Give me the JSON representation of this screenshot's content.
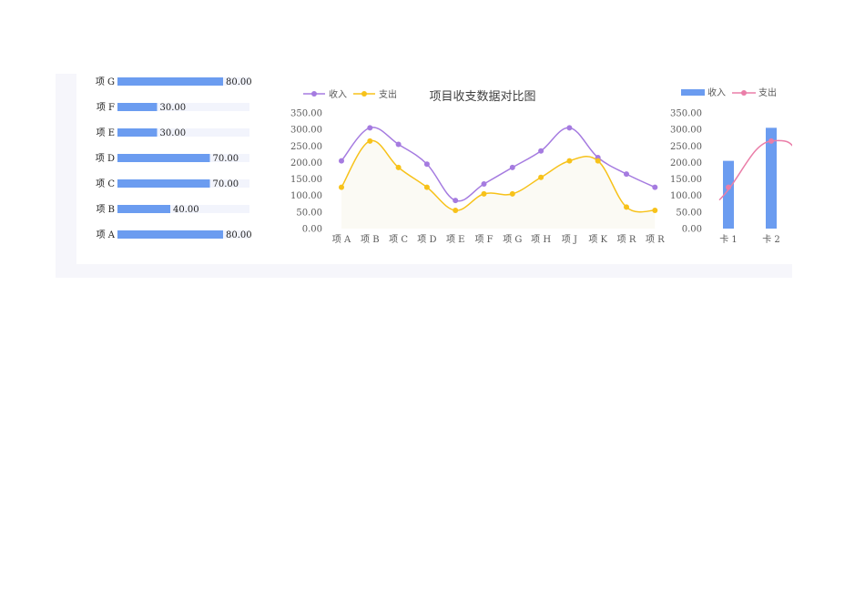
{
  "colors": {
    "bar": "#6b9cf0",
    "bar_track": "#f2f4fc",
    "income": "#a57be0",
    "expense": "#f7c21a",
    "expense_fill": "#fbfaf4",
    "income_right": "#ea7ea8",
    "panel_bg": "#f6f6fb"
  },
  "chart_data": [
    {
      "type": "bar",
      "orientation": "horizontal",
      "categories": [
        "项 G",
        "项 F",
        "项 E",
        "项 D",
        "项 C",
        "项 B",
        "项 A"
      ],
      "values": [
        80,
        30,
        30,
        70,
        70,
        40,
        80
      ],
      "value_labels": [
        "80.00",
        "30.00",
        "30.00",
        "70.00",
        "70.00",
        "40.00",
        "80.00"
      ],
      "xlim": [
        0,
        100
      ]
    },
    {
      "type": "line",
      "title": "项目收支数据对比图",
      "categories": [
        "项 A",
        "项 B",
        "项 C",
        "项 D",
        "项 E",
        "项 F",
        "项 G",
        "项 H",
        "项 J",
        "项 K",
        "项 R",
        "项 R"
      ],
      "series": [
        {
          "name": "收入",
          "values": [
            205,
            305,
            255,
            195,
            85,
            135,
            185,
            235,
            305,
            215,
            165,
            125
          ]
        },
        {
          "name": "支出",
          "values": [
            125,
            265,
            185,
            125,
            55,
            105,
            105,
            155,
            205,
            205,
            65,
            55
          ]
        }
      ],
      "yticks": [
        "0.00",
        "50.00",
        "100.00",
        "150.00",
        "200.00",
        "250.00",
        "300.00",
        "350.00"
      ],
      "ylim": [
        0,
        350
      ],
      "legend": "top-left",
      "smooth": true
    },
    {
      "type": "bar",
      "categories": [
        "卡 1",
        "卡 2"
      ],
      "series": [
        {
          "name": "收入",
          "type": "bar",
          "values": [
            205,
            305
          ]
        },
        {
          "name": "支出",
          "type": "line",
          "values": [
            125,
            265
          ]
        }
      ],
      "yticks": [
        "0.00",
        "50.00",
        "100.00",
        "150.00",
        "200.00",
        "250.00",
        "300.00",
        "350.00"
      ],
      "ylim": [
        0,
        350
      ],
      "legend": "top-left"
    }
  ]
}
